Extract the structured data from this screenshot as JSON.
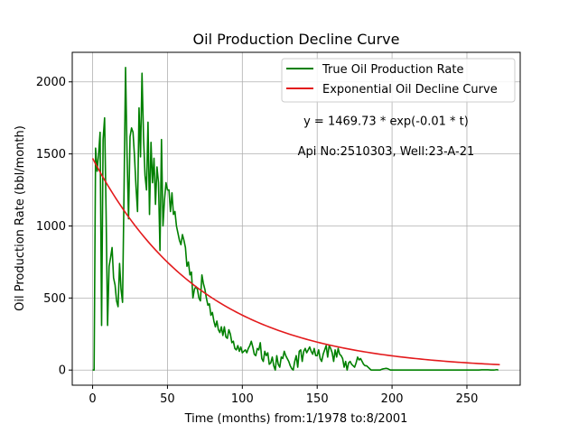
{
  "chart_data": {
    "type": "line",
    "title": "Oil Production Decline Curve",
    "xlabel": "Time (months) from:1/1978 to:8/2001",
    "ylabel": "Oil Production Rate (bbl/month)",
    "xlim": [
      -13.6,
      285.6
    ],
    "ylim": [
      -105,
      2205
    ],
    "xticks": [
      0,
      50,
      100,
      150,
      200,
      250
    ],
    "yticks": [
      0,
      500,
      1000,
      1500,
      2000
    ],
    "grid": true,
    "legend": "top-right",
    "annotations": [
      {
        "text": "y = 1469.73 * exp(-0.01 * t)",
        "x": 196,
        "y": 1700
      },
      {
        "text": "Api No:2510303, Well:23-A-21",
        "x": 196,
        "y": 1490
      }
    ],
    "series": [
      {
        "name": "True Oil Production Rate",
        "color": "#008000",
        "points": [
          [
            0,
            0
          ],
          [
            1,
            0
          ],
          [
            2,
            1540
          ],
          [
            3,
            1380
          ],
          [
            4,
            1500
          ],
          [
            5,
            1650
          ],
          [
            6,
            310
          ],
          [
            7,
            1600
          ],
          [
            8,
            1750
          ],
          [
            9,
            1100
          ],
          [
            10,
            310
          ],
          [
            11,
            720
          ],
          [
            12,
            780
          ],
          [
            13,
            850
          ],
          [
            14,
            640
          ],
          [
            15,
            590
          ],
          [
            16,
            480
          ],
          [
            17,
            440
          ],
          [
            18,
            740
          ],
          [
            19,
            560
          ],
          [
            20,
            470
          ],
          [
            21,
            1250
          ],
          [
            22,
            2100
          ],
          [
            23,
            1500
          ],
          [
            24,
            1050
          ],
          [
            25,
            1620
          ],
          [
            26,
            1680
          ],
          [
            27,
            1650
          ],
          [
            28,
            1480
          ],
          [
            29,
            1270
          ],
          [
            30,
            1100
          ],
          [
            31,
            1820
          ],
          [
            32,
            1480
          ],
          [
            33,
            2060
          ],
          [
            34,
            1620
          ],
          [
            35,
            1350
          ],
          [
            36,
            1250
          ],
          [
            37,
            1720
          ],
          [
            38,
            1080
          ],
          [
            39,
            1580
          ],
          [
            40,
            1300
          ],
          [
            41,
            1470
          ],
          [
            42,
            1150
          ],
          [
            43,
            1410
          ],
          [
            44,
            1300
          ],
          [
            45,
            830
          ],
          [
            46,
            1600
          ],
          [
            47,
            1000
          ],
          [
            48,
            1180
          ],
          [
            49,
            1300
          ],
          [
            50,
            1250
          ],
          [
            51,
            1250
          ],
          [
            52,
            1100
          ],
          [
            53,
            1230
          ],
          [
            54,
            1080
          ],
          [
            55,
            1100
          ],
          [
            56,
            1000
          ],
          [
            57,
            950
          ],
          [
            58,
            900
          ],
          [
            59,
            870
          ],
          [
            60,
            940
          ],
          [
            61,
            900
          ],
          [
            62,
            850
          ],
          [
            63,
            720
          ],
          [
            64,
            750
          ],
          [
            65,
            660
          ],
          [
            66,
            680
          ],
          [
            67,
            500
          ],
          [
            68,
            560
          ],
          [
            69,
            580
          ],
          [
            70,
            560
          ],
          [
            71,
            500
          ],
          [
            72,
            480
          ],
          [
            73,
            660
          ],
          [
            74,
            600
          ],
          [
            75,
            560
          ],
          [
            76,
            500
          ],
          [
            77,
            450
          ],
          [
            78,
            460
          ],
          [
            79,
            380
          ],
          [
            80,
            400
          ],
          [
            81,
            340
          ],
          [
            82,
            300
          ],
          [
            83,
            340
          ],
          [
            84,
            280
          ],
          [
            85,
            260
          ],
          [
            86,
            300
          ],
          [
            87,
            240
          ],
          [
            88,
            300
          ],
          [
            89,
            230
          ],
          [
            90,
            220
          ],
          [
            91,
            280
          ],
          [
            92,
            250
          ],
          [
            93,
            190
          ],
          [
            94,
            200
          ],
          [
            95,
            150
          ],
          [
            96,
            140
          ],
          [
            97,
            170
          ],
          [
            98,
            130
          ],
          [
            99,
            160
          ],
          [
            100,
            120
          ],
          [
            101,
            130
          ],
          [
            102,
            140
          ],
          [
            103,
            120
          ],
          [
            104,
            150
          ],
          [
            105,
            170
          ],
          [
            106,
            200
          ],
          [
            107,
            160
          ],
          [
            108,
            110
          ],
          [
            109,
            100
          ],
          [
            110,
            150
          ],
          [
            111,
            140
          ],
          [
            112,
            190
          ],
          [
            113,
            80
          ],
          [
            114,
            60
          ],
          [
            115,
            130
          ],
          [
            116,
            100
          ],
          [
            117,
            120
          ],
          [
            118,
            40
          ],
          [
            119,
            50
          ],
          [
            120,
            90
          ],
          [
            121,
            30
          ],
          [
            122,
            0
          ],
          [
            123,
            100
          ],
          [
            124,
            40
          ],
          [
            125,
            20
          ],
          [
            126,
            90
          ],
          [
            127,
            80
          ],
          [
            128,
            130
          ],
          [
            129,
            100
          ],
          [
            130,
            80
          ],
          [
            131,
            60
          ],
          [
            132,
            30
          ],
          [
            133,
            10
          ],
          [
            134,
            0
          ],
          [
            135,
            60
          ],
          [
            136,
            100
          ],
          [
            137,
            20
          ],
          [
            138,
            130
          ],
          [
            139,
            140
          ],
          [
            140,
            60
          ],
          [
            141,
            130
          ],
          [
            142,
            150
          ],
          [
            143,
            120
          ],
          [
            144,
            140
          ],
          [
            145,
            160
          ],
          [
            146,
            130
          ],
          [
            147,
            110
          ],
          [
            148,
            150
          ],
          [
            149,
            100
          ],
          [
            150,
            100
          ],
          [
            151,
            140
          ],
          [
            152,
            80
          ],
          [
            153,
            60
          ],
          [
            154,
            110
          ],
          [
            155,
            140
          ],
          [
            156,
            170
          ],
          [
            157,
            90
          ],
          [
            158,
            170
          ],
          [
            159,
            150
          ],
          [
            160,
            120
          ],
          [
            161,
            60
          ],
          [
            162,
            140
          ],
          [
            163,
            90
          ],
          [
            164,
            150
          ],
          [
            165,
            110
          ],
          [
            166,
            100
          ],
          [
            167,
            80
          ],
          [
            168,
            20
          ],
          [
            169,
            60
          ],
          [
            170,
            0
          ],
          [
            171,
            50
          ],
          [
            172,
            60
          ],
          [
            173,
            40
          ],
          [
            174,
            30
          ],
          [
            175,
            20
          ],
          [
            176,
            50
          ],
          [
            177,
            90
          ],
          [
            178,
            70
          ],
          [
            179,
            80
          ],
          [
            180,
            60
          ],
          [
            181,
            40
          ],
          [
            182,
            30
          ],
          [
            183,
            30
          ],
          [
            184,
            20
          ],
          [
            185,
            10
          ],
          [
            186,
            0
          ],
          [
            187,
            0
          ],
          [
            188,
            0
          ],
          [
            189,
            0
          ],
          [
            190,
            0
          ],
          [
            191,
            0
          ],
          [
            192,
            0
          ],
          [
            193,
            5
          ],
          [
            194,
            8
          ],
          [
            195,
            10
          ],
          [
            196,
            12
          ],
          [
            197,
            10
          ],
          [
            198,
            5
          ],
          [
            199,
            0
          ],
          [
            200,
            0
          ],
          [
            205,
            0
          ],
          [
            210,
            0
          ],
          [
            215,
            0
          ],
          [
            220,
            0
          ],
          [
            225,
            0
          ],
          [
            230,
            0
          ],
          [
            235,
            0
          ],
          [
            240,
            0
          ],
          [
            245,
            0
          ],
          [
            250,
            0
          ],
          [
            255,
            0
          ],
          [
            258,
            0
          ],
          [
            260,
            2
          ],
          [
            262,
            2
          ],
          [
            264,
            2
          ],
          [
            266,
            0
          ],
          [
            267,
            0
          ],
          [
            268,
            0
          ],
          [
            270,
            3
          ],
          [
            271,
            0
          ]
        ]
      },
      {
        "name": "Exponential Oil Decline Curve",
        "color": "#e31a1c",
        "model": {
          "a": 1469.73,
          "b": 0.0135,
          "t_start": 0,
          "t_end": 272
        }
      }
    ]
  }
}
